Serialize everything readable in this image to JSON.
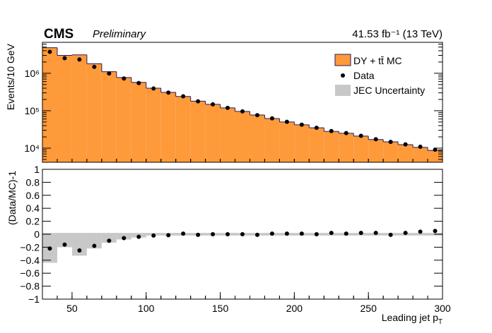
{
  "chart_data": [
    {
      "type": "histogram",
      "title": "CMS",
      "subtitle": "Preliminary",
      "annotation": "41.53 fb⁻¹ (13 TeV)",
      "ylabel": "Events/10 GeV",
      "ylog": true,
      "ylim": [
        4200,
        6700000
      ],
      "yticks": [
        {
          "value": 10000,
          "label": "10⁴"
        },
        {
          "value": 100000,
          "label": "10⁵"
        },
        {
          "value": 1000000,
          "label": "10⁶"
        }
      ],
      "xlim": [
        30,
        300
      ],
      "bins": [
        30,
        40,
        50,
        60,
        70,
        80,
        90,
        100,
        110,
        120,
        130,
        140,
        150,
        160,
        170,
        180,
        190,
        200,
        210,
        220,
        230,
        240,
        250,
        260,
        270,
        280,
        290,
        300
      ],
      "legend": "upper right",
      "series": [
        {
          "name": "DY + tt̄  MC",
          "style": "filled-step",
          "color": "#fe9a3a",
          "edgecolor": "#2b1a5a",
          "values": [
            4800000,
            3000000,
            3100000,
            1800000,
            1100000,
            770000,
            570000,
            400000,
            310000,
            240000,
            180000,
            148000,
            119000,
            96000,
            77000,
            62000,
            50000,
            42000,
            35000,
            28000,
            25000,
            21000,
            17000,
            14800,
            12400,
            10500,
            8700
          ]
        },
        {
          "name": "Data",
          "style": "points",
          "color": "#000000",
          "values": [
            3740000,
            2520000,
            2330000,
            1480000,
            990000,
            724000,
            547000,
            392000,
            305000,
            242000,
            178000,
            148000,
            119000,
            96000,
            76200,
            62600,
            50500,
            42400,
            35000,
            28600,
            25300,
            21400,
            17300,
            14700,
            12600,
            10900,
            9100
          ]
        }
      ]
    },
    {
      "type": "histogram",
      "ylabel": "(Data/MC)-1",
      "ylim": [
        -1,
        1
      ],
      "yticks": [
        {
          "value": -1,
          "label": "−1"
        },
        {
          "value": -0.8,
          "label": "−0.8"
        },
        {
          "value": -0.6,
          "label": "−0.6"
        },
        {
          "value": -0.4,
          "label": "−0.4"
        },
        {
          "value": -0.2,
          "label": "−0.2"
        },
        0,
        0.2,
        0.4,
        0.6,
        0.8,
        1
      ],
      "xlim": [
        30,
        300
      ],
      "xticks": [
        50,
        100,
        150,
        200,
        250,
        300
      ],
      "xlabel": "Leading jet p",
      "xlabel_subscript": "T",
      "bins": [
        30,
        40,
        50,
        60,
        70,
        80,
        90,
        100,
        110,
        120,
        130,
        140,
        150,
        160,
        170,
        180,
        190,
        200,
        210,
        220,
        230,
        240,
        250,
        260,
        270,
        280,
        290,
        300
      ],
      "series": [
        {
          "name": "JEC Uncertainty",
          "style": "band",
          "color": "#c8c8c8",
          "low": [
            -0.44,
            -0.2,
            -0.33,
            -0.22,
            -0.13,
            -0.08,
            -0.05,
            -0.02,
            -0.02,
            -0.02,
            -0.02,
            -0.02,
            -0.02,
            -0.02,
            -0.02,
            -0.02,
            -0.02,
            -0.02,
            -0.02,
            -0.02,
            -0.02,
            -0.02,
            -0.02,
            -0.02,
            -0.02,
            -0.02,
            -0.02
          ],
          "high": [
            0.02,
            0.02,
            0.02,
            0.02,
            0.02,
            0.02,
            0.02,
            0.02,
            0.02,
            0.02,
            0.02,
            0.02,
            0.02,
            0.02,
            0.02,
            0.02,
            0.02,
            0.02,
            0.02,
            0.02,
            0.02,
            0.02,
            0.02,
            0.02,
            0.02,
            0.02,
            0.02
          ]
        },
        {
          "name": "Data",
          "style": "points",
          "color": "#000000",
          "values": [
            -0.22,
            -0.16,
            -0.25,
            -0.18,
            -0.1,
            -0.06,
            -0.04,
            -0.02,
            -0.015,
            0.01,
            -0.01,
            0,
            0,
            0,
            -0.01,
            0.01,
            0.01,
            0.01,
            0,
            0.02,
            0.01,
            0.02,
            0.02,
            -0.01,
            0.02,
            0.04,
            0.05
          ]
        }
      ]
    }
  ]
}
